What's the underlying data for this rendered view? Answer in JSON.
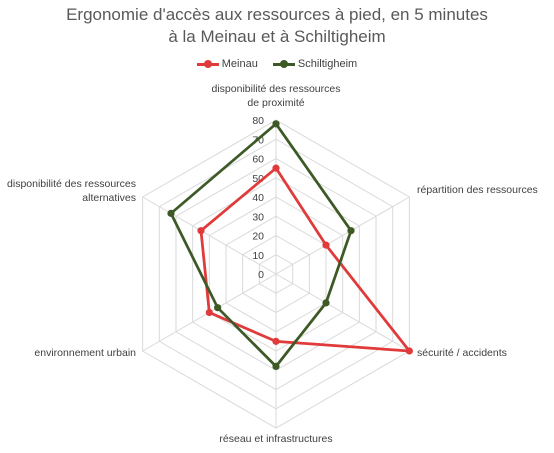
{
  "chart_data": {
    "type": "radar",
    "title_lines": [
      "Ergonomie d'accès aux ressources à pied, en 5 minutes",
      "à la Meinau et à Schiltigheim"
    ],
    "axes": [
      [
        "disponibilité des ressources",
        "de proximité"
      ],
      [
        "répartition des ressources"
      ],
      [
        "sécurité / accidents"
      ],
      [
        "réseau et infrastructures"
      ],
      [
        "environnement urbain"
      ],
      [
        "disponibilité des ressources",
        "alternatives"
      ]
    ],
    "ticks": [
      0,
      10,
      20,
      30,
      40,
      50,
      60,
      70,
      80
    ],
    "rlim": [
      0,
      80
    ],
    "legend_position": "top",
    "series": [
      {
        "name": "Meinau",
        "color": "#e03a3a",
        "values": [
          55,
          30,
          80,
          35,
          40,
          45
        ]
      },
      {
        "name": "Schiltigheim",
        "color": "#3d5a26",
        "values": [
          78,
          45,
          30,
          48,
          35,
          63
        ]
      }
    ]
  }
}
